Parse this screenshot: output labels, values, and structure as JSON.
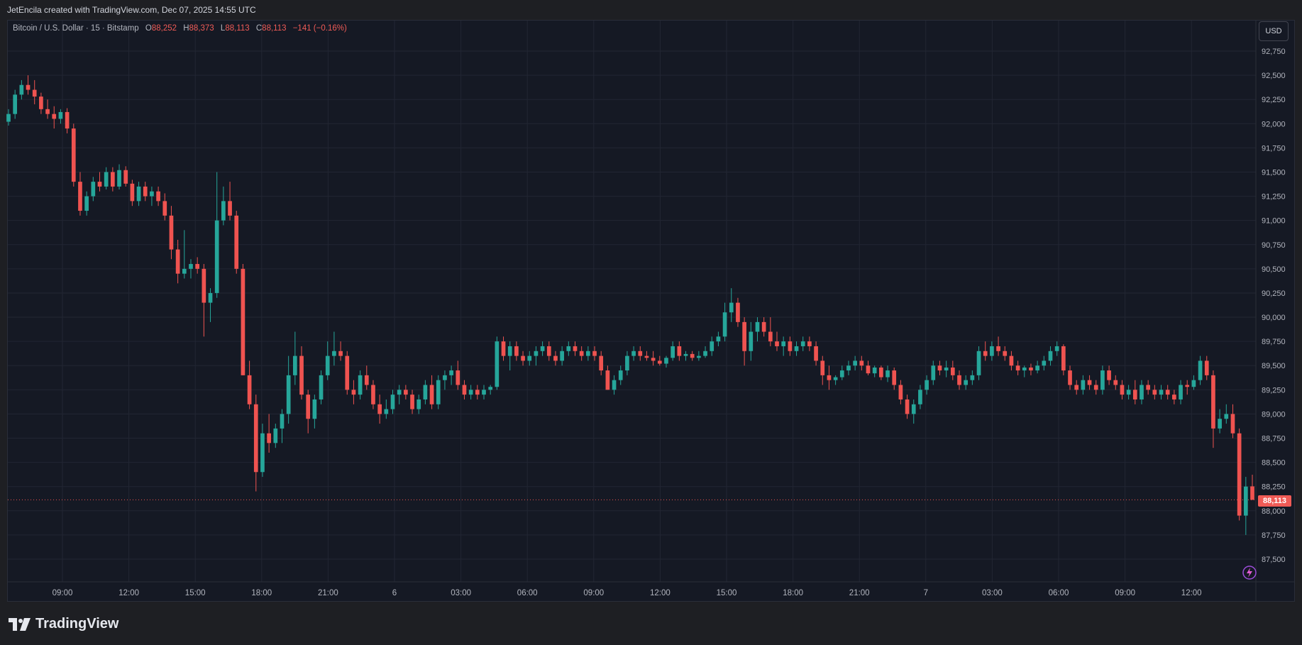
{
  "header": {
    "created_line": "JetEncila created with TradingView.com, Dec 07, 2025 14:55 UTC"
  },
  "legend": {
    "symbol": "Bitcoin / U.S. Dollar · 15 · Bitstamp",
    "open_label": "O",
    "open_value": "88,252",
    "high_label": "H",
    "high_value": "88,373",
    "low_label": "L",
    "low_value": "88,113",
    "close_label": "C",
    "close_value": "88,113",
    "change": "−141 (−0.16%)"
  },
  "currency_button": "USD",
  "last_price_tag": "88,113",
  "brand": {
    "name": "TradingView",
    "icon": "tradingview-logo-icon"
  },
  "colors": {
    "background": "#151924",
    "up": "#26a69a",
    "down": "#ef5350",
    "grid": "#222633",
    "axis_text": "#b2b5be"
  },
  "chart_data": {
    "type": "candlestick",
    "title": "",
    "ylim": [
      87250,
      92875
    ],
    "y_ticks": [
      "87,500",
      "87,750",
      "88,000",
      "88,250",
      "88,500",
      "88,750",
      "89,000",
      "89,250",
      "89,500",
      "89,750",
      "90,000",
      "90,250",
      "90,500",
      "90,750",
      "91,000",
      "91,250",
      "91,500",
      "91,750",
      "92,000",
      "92,250",
      "92,500",
      "92,750"
    ],
    "x_ticks": [
      "09:00",
      "12:00",
      "15:00",
      "18:00",
      "21:00",
      "6",
      "03:00",
      "06:00",
      "09:00",
      "12:00",
      "15:00",
      "18:00",
      "21:00",
      "7",
      "03:00",
      "06:00",
      "09:00",
      "12:00"
    ],
    "last_price": 88113,
    "grid": true,
    "candles_shape": [
      [
        0,
        92020,
        92150,
        91980,
        92100
      ],
      [
        1,
        92100,
        92350,
        92050,
        92300
      ],
      [
        2,
        92300,
        92450,
        92250,
        92400
      ],
      [
        3,
        92400,
        92500,
        92300,
        92350
      ],
      [
        4,
        92350,
        92450,
        92200,
        92280
      ],
      [
        5,
        92280,
        92320,
        92100,
        92150
      ],
      [
        6,
        92150,
        92250,
        92050,
        92100
      ],
      [
        7,
        92100,
        92180,
        91950,
        92050
      ],
      [
        8,
        92050,
        92150,
        92000,
        92120
      ],
      [
        9,
        92120,
        92160,
        91900,
        91950
      ],
      [
        10,
        91950,
        92000,
        91350,
        91400
      ],
      [
        11,
        91400,
        91500,
        91050,
        91100
      ],
      [
        12,
        91100,
        91300,
        91050,
        91250
      ],
      [
        13,
        91250,
        91450,
        91200,
        91400
      ],
      [
        14,
        91400,
        91500,
        91300,
        91350
      ],
      [
        15,
        91350,
        91550,
        91320,
        91500
      ],
      [
        16,
        91500,
        91550,
        91300,
        91350
      ],
      [
        17,
        91350,
        91580,
        91320,
        91520
      ],
      [
        18,
        91520,
        91560,
        91350,
        91380
      ],
      [
        19,
        91380,
        91420,
        91150,
        91200
      ],
      [
        20,
        91200,
        91400,
        91150,
        91350
      ],
      [
        21,
        91350,
        91400,
        91200,
        91250
      ],
      [
        22,
        91250,
        91350,
        91150,
        91300
      ],
      [
        23,
        91300,
        91350,
        91150,
        91200
      ],
      [
        24,
        91200,
        91280,
        91000,
        91050
      ],
      [
        25,
        91050,
        91150,
        90600,
        90700
      ],
      [
        26,
        90700,
        90800,
        90350,
        90450
      ],
      [
        27,
        90450,
        90900,
        90400,
        90500
      ],
      [
        28,
        90500,
        90600,
        90400,
        90550
      ],
      [
        29,
        90550,
        90620,
        90450,
        90500
      ],
      [
        30,
        90500,
        90550,
        89800,
        90150
      ],
      [
        31,
        90150,
        90300,
        89950,
        90250
      ],
      [
        32,
        90250,
        91500,
        90200,
        91000
      ],
      [
        33,
        91000,
        91350,
        90950,
        91200
      ],
      [
        34,
        91200,
        91400,
        91000,
        91050
      ],
      [
        35,
        91050,
        91100,
        90450,
        90500
      ],
      [
        36,
        90500,
        90550,
        89400,
        89400
      ],
      [
        37,
        89400,
        89550,
        89050,
        89100
      ],
      [
        38,
        89100,
        89200,
        88200,
        88400
      ],
      [
        39,
        88400,
        88900,
        88350,
        88800
      ],
      [
        40,
        88800,
        89000,
        88600,
        88700
      ],
      [
        41,
        88700,
        88900,
        88650,
        88850
      ],
      [
        42,
        88850,
        89050,
        88700,
        89000
      ],
      [
        43,
        89000,
        89600,
        88900,
        89400
      ],
      [
        44,
        89400,
        89850,
        89300,
        89600
      ],
      [
        45,
        89600,
        89700,
        89150,
        89200
      ],
      [
        46,
        89200,
        89250,
        88800,
        88950
      ],
      [
        47,
        88950,
        89200,
        88850,
        89150
      ],
      [
        48,
        89150,
        89450,
        89100,
        89400
      ],
      [
        49,
        89400,
        89750,
        89350,
        89600
      ],
      [
        50,
        89600,
        89850,
        89500,
        89650
      ],
      [
        51,
        89650,
        89750,
        89550,
        89600
      ],
      [
        52,
        89600,
        89650,
        89200,
        89250
      ],
      [
        53,
        89250,
        89350,
        89100,
        89200
      ],
      [
        54,
        89200,
        89450,
        89150,
        89400
      ],
      [
        55,
        89400,
        89500,
        89250,
        89300
      ],
      [
        56,
        89300,
        89350,
        89050,
        89100
      ],
      [
        57,
        89100,
        89200,
        88900,
        89000
      ],
      [
        58,
        89000,
        89150,
        88950,
        89050
      ],
      [
        59,
        89050,
        89250,
        89000,
        89200
      ],
      [
        60,
        89200,
        89300,
        89100,
        89250
      ],
      [
        61,
        89250,
        89300,
        89150,
        89200
      ],
      [
        62,
        89200,
        89250,
        89000,
        89050
      ],
      [
        63,
        89050,
        89200,
        89000,
        89150
      ],
      [
        64,
        89150,
        89350,
        89100,
        89300
      ],
      [
        65,
        89300,
        89400,
        89050,
        89100
      ],
      [
        66,
        89100,
        89400,
        89050,
        89350
      ],
      [
        67,
        89350,
        89450,
        89250,
        89400
      ],
      [
        68,
        89400,
        89500,
        89300,
        89450
      ],
      [
        69,
        89450,
        89550,
        89250,
        89300
      ],
      [
        70,
        89300,
        89350,
        89150,
        89200
      ],
      [
        71,
        89200,
        89300,
        89150,
        89250
      ],
      [
        72,
        89250,
        89300,
        89150,
        89200
      ],
      [
        73,
        89200,
        89300,
        89150,
        89250
      ],
      [
        74,
        89250,
        89300,
        89200,
        89280
      ],
      [
        75,
        89280,
        89800,
        89250,
        89750
      ],
      [
        76,
        89750,
        89800,
        89550,
        89600
      ],
      [
        77,
        89600,
        89750,
        89450,
        89700
      ],
      [
        78,
        89700,
        89750,
        89550,
        89600
      ],
      [
        79,
        89600,
        89650,
        89500,
        89550
      ],
      [
        80,
        89550,
        89650,
        89500,
        89600
      ],
      [
        81,
        89600,
        89700,
        89500,
        89650
      ],
      [
        82,
        89650,
        89750,
        89600,
        89700
      ],
      [
        83,
        89700,
        89750,
        89550,
        89600
      ],
      [
        84,
        89600,
        89650,
        89500,
        89550
      ],
      [
        85,
        89550,
        89700,
        89500,
        89650
      ],
      [
        86,
        89650,
        89750,
        89600,
        89700
      ],
      [
        87,
        89700,
        89750,
        89600,
        89650
      ],
      [
        88,
        89650,
        89700,
        89550,
        89600
      ],
      [
        89,
        89600,
        89700,
        89550,
        89650
      ],
      [
        90,
        89650,
        89700,
        89550,
        89600
      ],
      [
        91,
        89600,
        89650,
        89400,
        89450
      ],
      [
        92,
        89450,
        89500,
        89250,
        89250
      ],
      [
        93,
        89250,
        89400,
        89200,
        89350
      ],
      [
        94,
        89350,
        89500,
        89300,
        89450
      ],
      [
        95,
        89450,
        89650,
        89400,
        89600
      ],
      [
        96,
        89600,
        89700,
        89550,
        89650
      ],
      [
        97,
        89650,
        89700,
        89550,
        89600
      ],
      [
        98,
        89600,
        89650,
        89550,
        89580
      ],
      [
        99,
        89580,
        89650,
        89500,
        89550
      ],
      [
        100,
        89550,
        89600,
        89500,
        89520
      ],
      [
        101,
        89520,
        89600,
        89480,
        89580
      ],
      [
        102,
        89580,
        89750,
        89550,
        89700
      ],
      [
        103,
        89700,
        89750,
        89550,
        89600
      ],
      [
        104,
        89600,
        89650,
        89550,
        89620
      ],
      [
        105,
        89620,
        89650,
        89550,
        89580
      ],
      [
        106,
        89580,
        89650,
        89550,
        89600
      ],
      [
        107,
        89600,
        89700,
        89580,
        89650
      ],
      [
        108,
        89650,
        89800,
        89600,
        89750
      ],
      [
        109,
        89750,
        89850,
        89700,
        89800
      ],
      [
        110,
        89800,
        90150,
        89750,
        90050
      ],
      [
        111,
        90050,
        90300,
        89950,
        90150
      ],
      [
        112,
        90150,
        90200,
        89900,
        89950
      ],
      [
        113,
        89950,
        90000,
        89500,
        89650
      ],
      [
        114,
        89650,
        89950,
        89550,
        89850
      ],
      [
        115,
        89850,
        90000,
        89750,
        89950
      ],
      [
        116,
        89950,
        90000,
        89800,
        89850
      ],
      [
        117,
        89850,
        90000,
        89700,
        89750
      ],
      [
        118,
        89750,
        89850,
        89650,
        89700
      ],
      [
        119,
        89700,
        89800,
        89600,
        89750
      ],
      [
        120,
        89750,
        89800,
        89600,
        89650
      ],
      [
        121,
        89650,
        89750,
        89600,
        89700
      ],
      [
        122,
        89700,
        89800,
        89650,
        89750
      ],
      [
        123,
        89750,
        89800,
        89650,
        89700
      ],
      [
        124,
        89700,
        89750,
        89500,
        89550
      ],
      [
        125,
        89550,
        89600,
        89300,
        89400
      ],
      [
        126,
        89400,
        89500,
        89250,
        89350
      ],
      [
        127,
        89350,
        89400,
        89300,
        89380
      ],
      [
        128,
        89380,
        89500,
        89350,
        89450
      ],
      [
        129,
        89450,
        89550,
        89400,
        89500
      ],
      [
        130,
        89500,
        89600,
        89450,
        89550
      ],
      [
        131,
        89550,
        89600,
        89450,
        89500
      ],
      [
        132,
        89500,
        89550,
        89400,
        89420
      ],
      [
        133,
        89420,
        89500,
        89380,
        89480
      ],
      [
        134,
        89480,
        89500,
        89350,
        89380
      ],
      [
        135,
        89380,
        89500,
        89330,
        89450
      ],
      [
        136,
        89450,
        89480,
        89250,
        89300
      ],
      [
        137,
        89300,
        89350,
        89100,
        89150
      ],
      [
        138,
        89150,
        89200,
        88950,
        89000
      ],
      [
        139,
        89000,
        89150,
        88900,
        89100
      ],
      [
        140,
        89100,
        89300,
        89050,
        89250
      ],
      [
        141,
        89250,
        89400,
        89200,
        89350
      ],
      [
        142,
        89350,
        89550,
        89300,
        89500
      ],
      [
        143,
        89500,
        89550,
        89400,
        89450
      ],
      [
        144,
        89450,
        89550,
        89380,
        89480
      ],
      [
        145,
        89480,
        89550,
        89350,
        89400
      ],
      [
        146,
        89400,
        89450,
        89250,
        89300
      ],
      [
        147,
        89300,
        89400,
        89250,
        89350
      ],
      [
        148,
        89350,
        89450,
        89300,
        89400
      ],
      [
        149,
        89400,
        89700,
        89350,
        89650
      ],
      [
        150,
        89650,
        89750,
        89550,
        89600
      ],
      [
        151,
        89600,
        89750,
        89550,
        89700
      ],
      [
        152,
        89700,
        89800,
        89600,
        89650
      ],
      [
        153,
        89650,
        89700,
        89550,
        89600
      ],
      [
        154,
        89600,
        89650,
        89450,
        89500
      ],
      [
        155,
        89500,
        89550,
        89400,
        89450
      ],
      [
        156,
        89450,
        89500,
        89380,
        89480
      ],
      [
        157,
        89480,
        89520,
        89400,
        89450
      ],
      [
        158,
        89450,
        89550,
        89420,
        89500
      ],
      [
        159,
        89500,
        89600,
        89450,
        89550
      ],
      [
        160,
        89550,
        89700,
        89500,
        89650
      ],
      [
        161,
        89650,
        89750,
        89600,
        89700
      ],
      [
        162,
        89700,
        89720,
        89400,
        89450
      ],
      [
        163,
        89450,
        89500,
        89250,
        89300
      ],
      [
        164,
        89300,
        89350,
        89200,
        89250
      ],
      [
        165,
        89250,
        89400,
        89200,
        89350
      ],
      [
        166,
        89350,
        89400,
        89250,
        89300
      ],
      [
        167,
        89300,
        89350,
        89200,
        89250
      ],
      [
        168,
        89250,
        89500,
        89200,
        89450
      ],
      [
        169,
        89450,
        89500,
        89300,
        89350
      ],
      [
        170,
        89350,
        89400,
        89250,
        89300
      ],
      [
        171,
        89300,
        89350,
        89150,
        89200
      ],
      [
        172,
        89200,
        89300,
        89150,
        89250
      ],
      [
        173,
        89250,
        89350,
        89100,
        89150
      ],
      [
        174,
        89150,
        89350,
        89100,
        89300
      ],
      [
        175,
        89300,
        89350,
        89200,
        89250
      ],
      [
        176,
        89250,
        89300,
        89150,
        89200
      ],
      [
        177,
        89200,
        89300,
        89150,
        89250
      ],
      [
        178,
        89250,
        89300,
        89150,
        89200
      ],
      [
        179,
        89200,
        89250,
        89100,
        89150
      ],
      [
        180,
        89150,
        89350,
        89100,
        89300
      ],
      [
        181,
        89300,
        89350,
        89200,
        89280
      ],
      [
        182,
        89280,
        89400,
        89250,
        89350
      ],
      [
        183,
        89350,
        89600,
        89300,
        89550
      ],
      [
        184,
        89550,
        89600,
        89350,
        89400
      ],
      [
        185,
        89400,
        89450,
        88650,
        88850
      ],
      [
        186,
        88850,
        89050,
        88800,
        88950
      ],
      [
        187,
        88950,
        89100,
        88900,
        89000
      ],
      [
        188,
        89000,
        89100,
        88750,
        88800
      ],
      [
        189,
        88800,
        88850,
        87900,
        87950
      ],
      [
        190,
        87950,
        88350,
        87750,
        88250
      ],
      [
        191,
        88252,
        88373,
        88113,
        88113
      ]
    ]
  }
}
